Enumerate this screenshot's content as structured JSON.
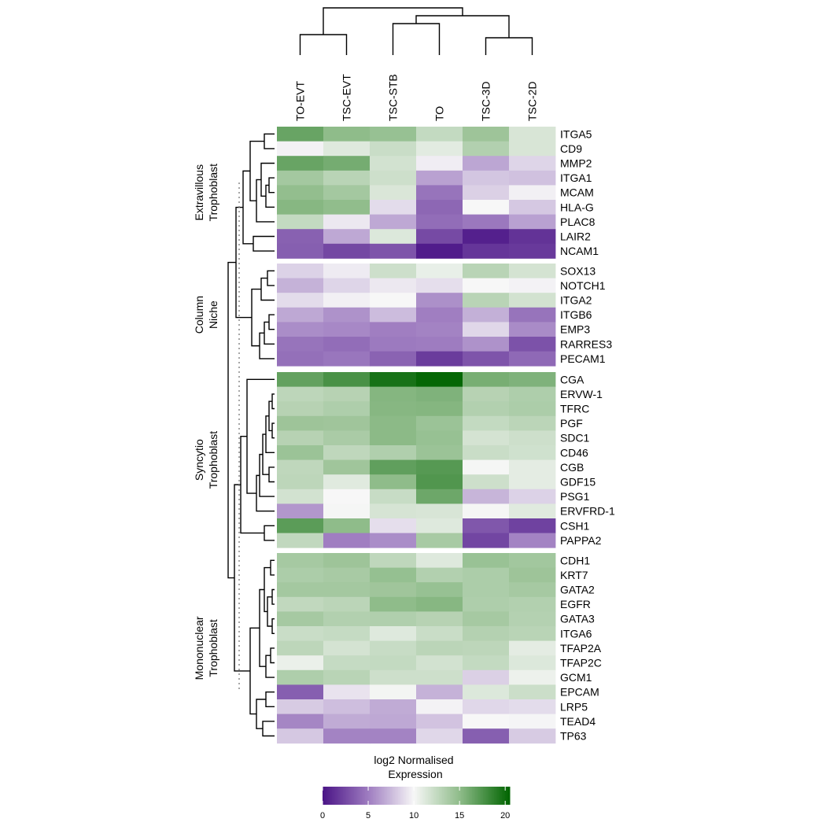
{
  "chart_data": {
    "type": "heatmap",
    "columns": [
      "TO-EVT",
      "TSC-EVT",
      "TSC-STB",
      "TO",
      "TSC-3D",
      "TSC-2D"
    ],
    "groups": [
      {
        "label_lines": [
          "Extravillous",
          "Trophoblast"
        ],
        "genes": [
          "ITGA5",
          "CD9",
          "MMP2",
          "ITGA1",
          "MCAM",
          "HLA-G",
          "PLAC8",
          "LAIR2",
          "NCAM1"
        ],
        "values": [
          [
            16.5,
            15.0,
            14.6,
            12.5,
            14.3,
            11.5
          ],
          [
            9.8,
            11.2,
            12.2,
            11.0,
            13.3,
            11.5
          ],
          [
            16.5,
            16.0,
            11.8,
            9.6,
            6.7,
            8.6
          ],
          [
            14.0,
            13.0,
            12.0,
            6.5,
            8.0,
            7.8
          ],
          [
            14.8,
            14.0,
            11.4,
            4.6,
            8.4,
            9.7
          ],
          [
            15.3,
            14.9,
            8.9,
            4.0,
            10.0,
            8.1
          ],
          [
            12.5,
            9.4,
            6.8,
            4.3,
            4.8,
            6.5
          ],
          [
            3.7,
            6.8,
            11.3,
            2.6,
            0.6,
            1.5
          ],
          [
            3.6,
            2.5,
            3.1,
            0.4,
            1.6,
            1.8
          ]
        ]
      },
      {
        "label_lines": [
          "Column",
          "Niche"
        ],
        "genes": [
          "SOX13",
          "NOTCH1",
          "ITGA2",
          "ITGB6",
          "EMP3",
          "RARRES3",
          "PECAM1"
        ],
        "values": [
          [
            8.5,
            9.5,
            12.0,
            10.7,
            13.0,
            11.7
          ],
          [
            7.2,
            8.6,
            9.4,
            9.0,
            10.0,
            9.8
          ],
          [
            8.9,
            9.7,
            10.0,
            5.8,
            13.0,
            11.8
          ],
          [
            6.8,
            5.9,
            7.6,
            5.1,
            7.1,
            4.6
          ],
          [
            5.7,
            5.5,
            5.1,
            5.3,
            8.7,
            5.6
          ],
          [
            4.6,
            4.3,
            4.9,
            5.0,
            5.9,
            3.0
          ],
          [
            4.4,
            4.7,
            3.8,
            1.9,
            3.1,
            4.1
          ]
        ]
      },
      {
        "label_lines": [
          "Syncytio",
          "Trophoblast"
        ],
        "genes": [
          "CGA",
          "ERVW-1",
          "TFRC",
          "PGF",
          "SDC1",
          "CD46",
          "CGB",
          "GDF15",
          "PSG1",
          "ERVFRD-1",
          "CSH1",
          "PAPPA2"
        ],
        "values": [
          [
            16.7,
            17.7,
            19.6,
            20.3,
            15.9,
            15.6
          ],
          [
            12.8,
            13.1,
            15.4,
            15.6,
            13.1,
            13.5
          ],
          [
            13.1,
            13.5,
            15.3,
            15.4,
            13.3,
            13.6
          ],
          [
            14.3,
            14.2,
            15.1,
            14.4,
            12.5,
            12.9
          ],
          [
            13.1,
            13.7,
            15.1,
            14.6,
            11.7,
            12.0
          ],
          [
            14.4,
            12.7,
            13.4,
            14.4,
            12.2,
            11.9
          ],
          [
            12.7,
            14.2,
            16.8,
            17.2,
            10.1,
            10.9
          ],
          [
            12.8,
            11.1,
            15.0,
            17.4,
            12.0,
            10.9
          ],
          [
            11.8,
            10.0,
            12.3,
            16.3,
            7.3,
            8.5
          ],
          [
            6.1,
            10.1,
            11.6,
            11.5,
            10.1,
            11.1
          ],
          [
            17.0,
            15.0,
            9.0,
            11.2,
            3.2,
            2.2
          ],
          [
            12.6,
            5.1,
            5.7,
            13.8,
            2.4,
            5.3
          ]
        ]
      },
      {
        "label_lines": [
          "Mononuclear",
          "Trophoblast"
        ],
        "genes": [
          "CDH1",
          "KRT7",
          "GATA2",
          "EGFR",
          "GATA3",
          "ITGA6",
          "TFAP2A",
          "TFAP2C",
          "GCM1",
          "EPCAM",
          "LRP5",
          "TEAD4",
          "TP63"
        ],
        "values": [
          [
            13.9,
            14.3,
            12.7,
            11.2,
            14.5,
            14.1
          ],
          [
            13.6,
            13.8,
            14.7,
            13.3,
            13.6,
            14.3
          ],
          [
            14.0,
            14.0,
            14.2,
            14.6,
            13.6,
            13.9
          ],
          [
            12.6,
            12.9,
            15.0,
            15.3,
            13.5,
            13.3
          ],
          [
            13.9,
            13.3,
            13.4,
            13.1,
            13.9,
            13.2
          ],
          [
            12.2,
            12.4,
            11.2,
            12.2,
            13.2,
            13.0
          ],
          [
            12.8,
            11.7,
            12.3,
            12.9,
            12.8,
            10.9
          ],
          [
            10.6,
            12.4,
            12.5,
            11.8,
            12.5,
            11.3
          ],
          [
            13.5,
            13.0,
            12.0,
            12.0,
            8.4,
            10.5
          ],
          [
            3.6,
            9.2,
            10.2,
            7.2,
            11.3,
            12.1
          ],
          [
            8.2,
            7.7,
            6.9,
            9.8,
            8.7,
            8.9
          ],
          [
            5.4,
            6.9,
            6.8,
            7.9,
            10.0,
            9.9
          ],
          [
            8.1,
            5.3,
            5.3,
            8.7,
            3.6,
            8.2
          ]
        ]
      }
    ],
    "legend": {
      "title_lines": [
        "log2 Normalised",
        "Expression"
      ],
      "ticks": [
        0,
        5,
        10,
        15,
        20
      ],
      "range": [
        0,
        20.5
      ],
      "placement": "bottom"
    },
    "colors": {
      "low": "#4a1486",
      "low_mid": "#9e7cc0",
      "mid": "#f7f7f7",
      "high_mid": "#8fbc8a",
      "high": "#006400",
      "text": "#000000",
      "dendrogram": "#000000",
      "separator": "#ffffff",
      "guide_line": "#808080"
    }
  }
}
